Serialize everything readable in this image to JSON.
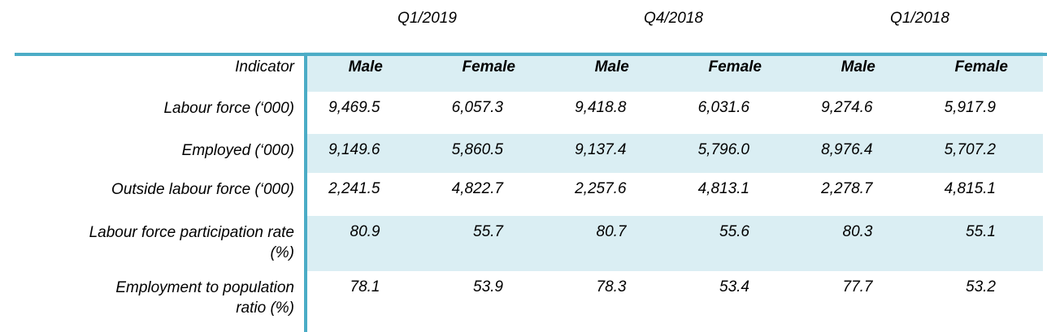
{
  "table": {
    "quarters": [
      "Q1/2019",
      "Q4/2018",
      "Q1/2018"
    ],
    "indicator_header": "Indicator",
    "sub_headers": [
      "Male",
      "Female",
      "Male",
      "Female",
      "Male",
      "Female"
    ],
    "rows": [
      {
        "label": "Labour force (‘000)",
        "values": [
          "9,469.5",
          "6,057.3",
          "9,418.8",
          "6,031.6",
          "9,274.6",
          "5,917.9"
        ]
      },
      {
        "label": "Employed (‘000)",
        "values": [
          "9,149.6",
          "5,860.5",
          "9,137.4",
          "5,796.0",
          "8,976.4",
          "5,707.2"
        ]
      },
      {
        "label": "Outside labour force (‘000)",
        "values": [
          "2,241.5",
          "4,822.7",
          "2,257.6",
          "4,813.1",
          "2,278.7",
          "4,815.1"
        ]
      },
      {
        "label": "Labour force participation rate\n(%)",
        "values": [
          "80.9",
          "55.7",
          "80.7",
          "55.6",
          "80.3",
          "55.1"
        ]
      },
      {
        "label": "Employment to population\nratio (%)",
        "values": [
          "78.1",
          "53.9",
          "78.3",
          "53.4",
          "77.7",
          "53.2"
        ]
      }
    ],
    "colors": {
      "accent_teal": "#4BACC6",
      "band_blue": "#DAEEF3",
      "text": "#000000"
    }
  }
}
